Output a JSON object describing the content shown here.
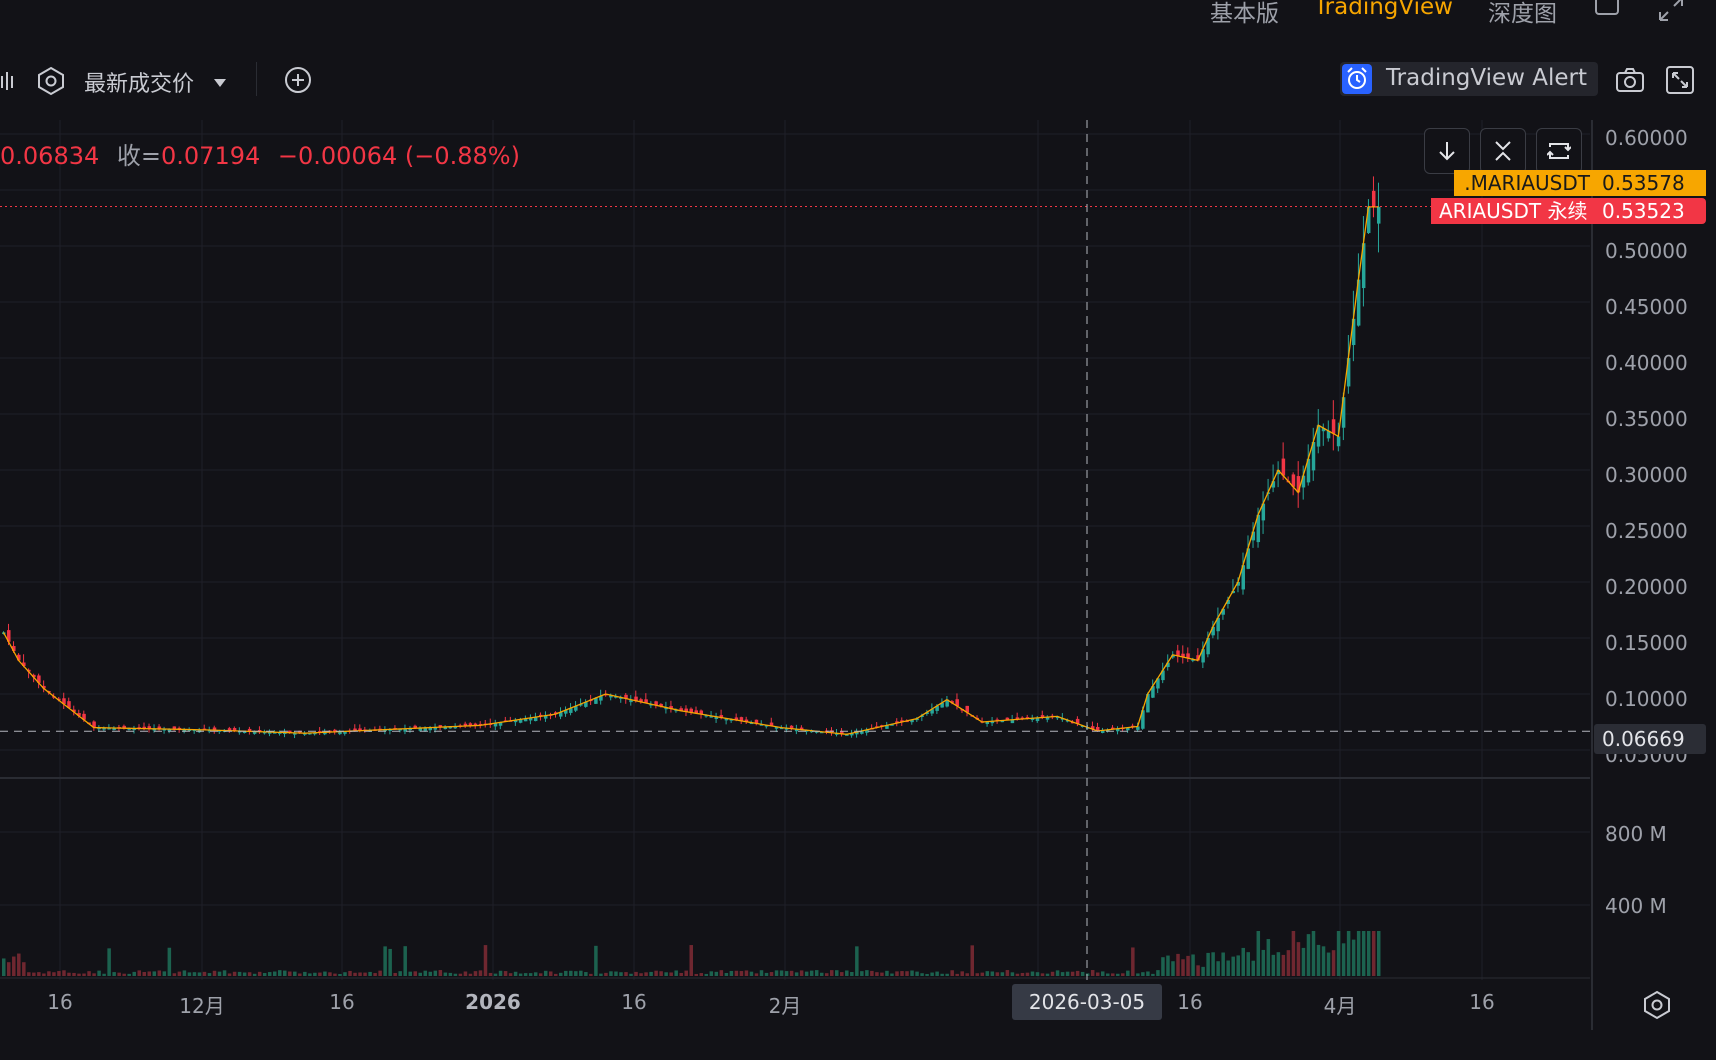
{
  "top_tabs": {
    "basic": "基本版",
    "tradingview": "TradingView",
    "depth": "深度图"
  },
  "toolbar": {
    "price_type": "最新成交价",
    "alert_label": "TradingView Alert"
  },
  "legend": {
    "ohlc_partial": "0.06834",
    "close_label": "收=",
    "close_value": "0.07194",
    "change": "−0.00064 (−0.88%)"
  },
  "price_scale": {
    "ticks": [
      "0.60000",
      "0.50000",
      "0.45000",
      "0.40000",
      "0.35000",
      "0.30000",
      "0.25000",
      "0.20000",
      "0.15000",
      "0.10000",
      "0.05000"
    ],
    "crosshair_value": "0.06669",
    "mark_symbol": ".MARIAUSDT",
    "mark_value": "0.53578",
    "last_symbol": "ARIAUSDT 永续",
    "last_value": "0.53523"
  },
  "volume_scale": {
    "ticks": [
      "800 M",
      "400 M"
    ]
  },
  "time_scale": {
    "ticks": [
      "16",
      "12月",
      "16",
      "2026",
      "16",
      "2月",
      "16",
      "4月",
      "16"
    ],
    "crosshair_date": "2026-03-05"
  },
  "colors": {
    "background": "#121217",
    "up": "#26a69a",
    "down": "#f23645",
    "ma": "#f7a600",
    "accent": "#f7a600"
  },
  "chart_data": {
    "type": "candlestick",
    "series": [
      {
        "name": "ARIAUSDT 永续"
      }
    ],
    "ylim": [
      0.05,
      0.6
    ],
    "last_price": 0.53523,
    "mark_price": 0.53578,
    "crosshair": {
      "date": "2026-03-05",
      "price": 0.06669
    },
    "approx_close_path": [
      {
        "x": "11-09",
        "y": 0.155
      },
      {
        "x": "11-12",
        "y": 0.105
      },
      {
        "x": "11-19",
        "y": 0.07
      },
      {
        "x": "12-01",
        "y": 0.068
      },
      {
        "x": "12-16",
        "y": 0.065
      },
      {
        "x": "2026-01-01",
        "y": 0.072
      },
      {
        "x": "01-10",
        "y": 0.082
      },
      {
        "x": "01-16",
        "y": 0.1
      },
      {
        "x": "02-01",
        "y": 0.07
      },
      {
        "x": "02-08",
        "y": 0.064
      },
      {
        "x": "02-20",
        "y": 0.085
      },
      {
        "x": "03-05",
        "y": 0.067
      },
      {
        "x": "03-10",
        "y": 0.13
      },
      {
        "x": "03-16",
        "y": 0.15
      },
      {
        "x": "03-22",
        "y": 0.27
      },
      {
        "x": "03-28",
        "y": 0.33
      },
      {
        "x": "04-01",
        "y": 0.35
      },
      {
        "x": "04-03",
        "y": 0.47
      },
      {
        "x": "04-05",
        "y": 0.535
      }
    ]
  }
}
